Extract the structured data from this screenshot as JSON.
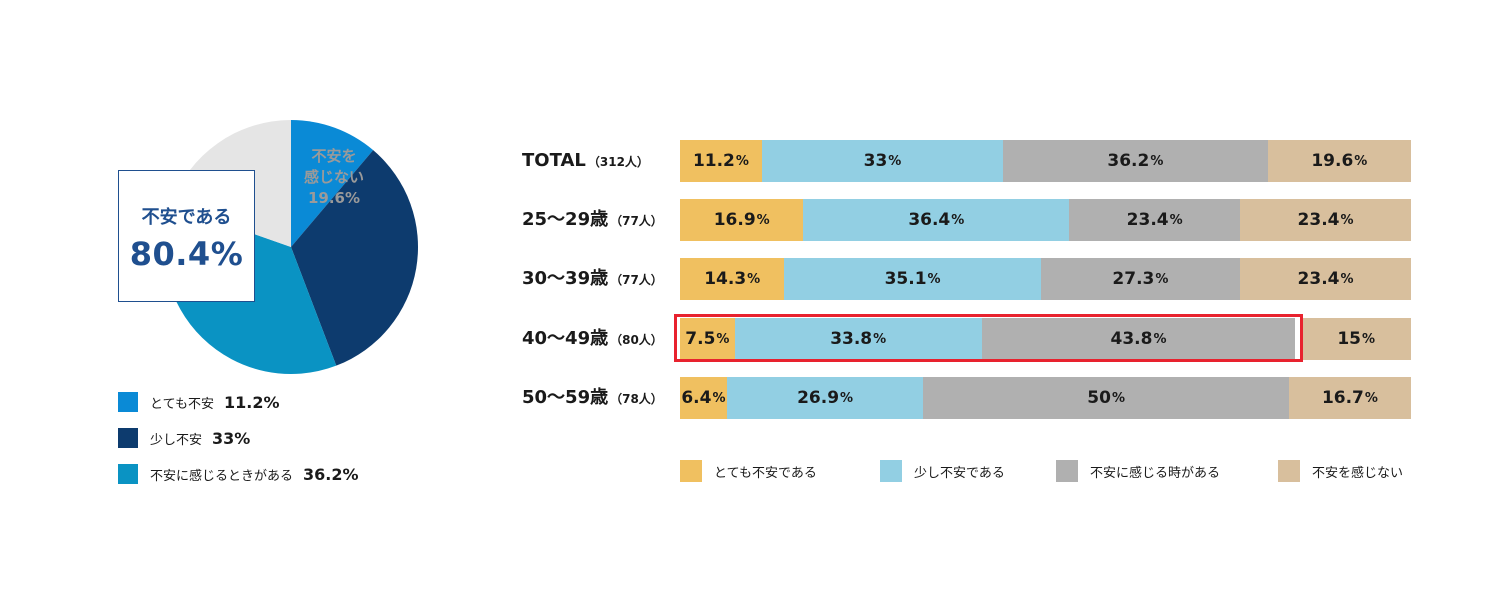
{
  "colors": {
    "pie_very": "#0a8ad6",
    "pie_slight": "#0d3b6e",
    "pie_sometimes": "#0a93c3",
    "pie_none": "#e5e5e5",
    "bar_very": "#f0c060",
    "bar_slight": "#92cfe3",
    "bar_sometimes": "#b0b0b0",
    "bar_none": "#d8bf9d",
    "highlight": "#e8222e"
  },
  "pie": {
    "callout_label": "不安である",
    "callout_value": "80.4%",
    "none_label_line1": "不安を",
    "none_label_line2": "感じない",
    "none_value": "19.6%",
    "legend": [
      {
        "label": "とても不安",
        "value": "11.2%"
      },
      {
        "label": "少し不安",
        "value": "33%"
      },
      {
        "label": "不安に感じるときがある",
        "value": "36.2%"
      }
    ]
  },
  "legend": [
    {
      "label": "とても不安である"
    },
    {
      "label": "少し不安である"
    },
    {
      "label": "不安に感じる時がある"
    },
    {
      "label": "不安を感じない"
    }
  ],
  "chart_data": [
    {
      "type": "pie",
      "slices": [
        {
          "name": "とても不安",
          "value": 11.2
        },
        {
          "name": "少し不安",
          "value": 33
        },
        {
          "name": "不安に感じるときがある",
          "value": 36.2
        },
        {
          "name": "不安を感じない",
          "value": 19.6
        }
      ]
    },
    {
      "type": "bar",
      "orientation": "horizontal",
      "stacked": "100%",
      "categories": [
        {
          "name": "TOTAL",
          "n": "（312人）"
        },
        {
          "name": "25〜29歳",
          "n": "（77人）"
        },
        {
          "name": "30〜39歳",
          "n": "（77人）"
        },
        {
          "name": "40〜49歳",
          "n": "（80人）"
        },
        {
          "name": "50〜59歳",
          "n": "（78人）"
        }
      ],
      "series": [
        {
          "name": "とても不安である",
          "values": [
            11.2,
            16.9,
            14.3,
            7.5,
            6.4
          ]
        },
        {
          "name": "少し不安である",
          "values": [
            33,
            36.4,
            35.1,
            33.8,
            26.9
          ]
        },
        {
          "name": "不安に感じる時がある",
          "values": [
            36.2,
            23.4,
            27.3,
            43.8,
            50
          ]
        },
        {
          "name": "不安を感じない",
          "values": [
            19.6,
            23.4,
            23.4,
            15,
            16.7
          ]
        }
      ],
      "highlighted_category": "40〜49歳",
      "legend_position": "bottom"
    }
  ]
}
